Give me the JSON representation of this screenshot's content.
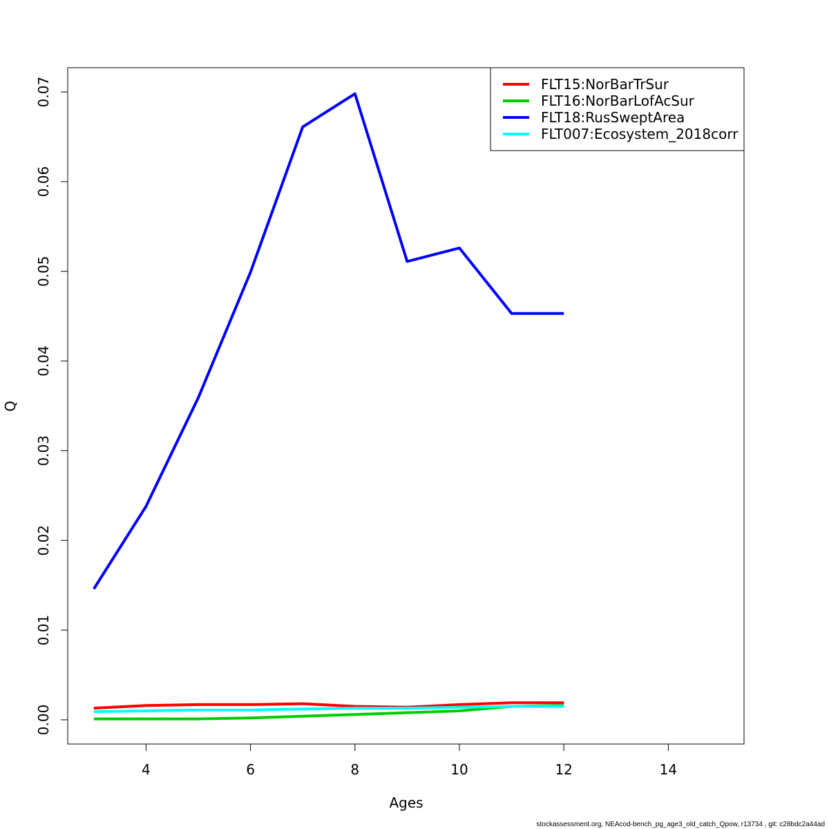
{
  "chart_data": {
    "type": "line",
    "title": "",
    "xlabel": "Ages",
    "ylabel": "Q",
    "xlim": [
      2.5,
      15.45
    ],
    "ylim": [
      -0.0027,
      0.0727
    ],
    "x_ticks": [
      4,
      6,
      8,
      10,
      12,
      14
    ],
    "x_tick_labels": [
      "4",
      "6",
      "8",
      "10",
      "12",
      "14"
    ],
    "y_ticks": [
      0.0,
      0.01,
      0.02,
      0.03,
      0.04,
      0.05,
      0.06,
      0.07
    ],
    "y_tick_labels": [
      "0.00",
      "0.01",
      "0.02",
      "0.03",
      "0.04",
      "0.05",
      "0.06",
      "0.07"
    ],
    "grid": false,
    "legend_position": "top-right",
    "series": [
      {
        "name": "FLT15:NorBarTrSur",
        "color": "#ff0000",
        "x": [
          3,
          4,
          5,
          6,
          7,
          8,
          9,
          10,
          11,
          12
        ],
        "values": [
          0.0013,
          0.0016,
          0.0017,
          0.0017,
          0.0018,
          0.0015,
          0.0014,
          0.0017,
          0.0019,
          0.0019
        ]
      },
      {
        "name": "FLT16:NorBarLofAcSur",
        "color": "#00cd00",
        "x": [
          3,
          4,
          5,
          6,
          7,
          8,
          9,
          10,
          11,
          12
        ],
        "values": [
          0.0001,
          0.0001,
          0.0001,
          0.0002,
          0.0004,
          0.0006,
          0.0008,
          0.001,
          0.0015,
          0.0016
        ]
      },
      {
        "name": "FLT18:RusSweptArea",
        "color": "#0000ff",
        "x": [
          3,
          4,
          5,
          6,
          7,
          8,
          9,
          10,
          11,
          12
        ],
        "values": [
          0.0146,
          0.0238,
          0.0359,
          0.0499,
          0.0661,
          0.0698,
          0.0511,
          0.0526,
          0.0453,
          0.0453
        ]
      },
      {
        "name": "FLT007:Ecosystem_2018corr",
        "color": "#00ffff",
        "x": [
          3,
          4,
          5,
          6,
          7,
          8,
          9,
          10,
          11,
          12
        ],
        "values": [
          0.0009,
          0.001,
          0.0011,
          0.0011,
          0.0012,
          0.0013,
          0.0013,
          0.0014,
          0.0015,
          0.0015
        ]
      }
    ]
  },
  "footer": "stockassessment.org, NEAcod-bench_pg_age3_old_catch_Qpow, r13734 , git: c28bdc2a44ad"
}
